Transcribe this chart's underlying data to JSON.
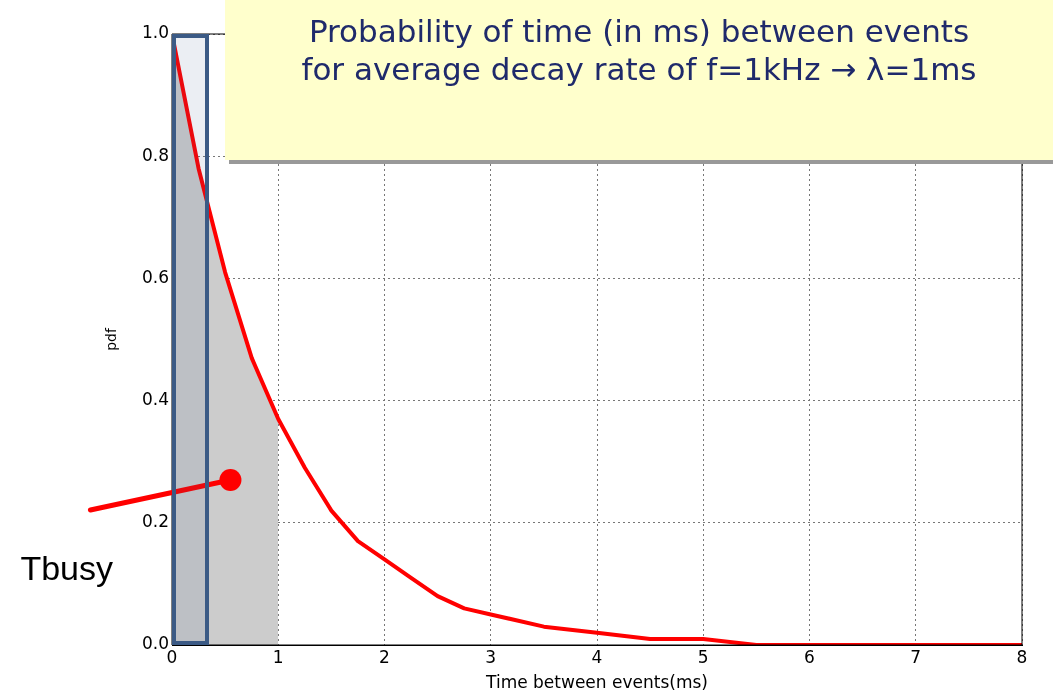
{
  "chart_data": {
    "type": "line",
    "title": "Probability of time (in ms) between events for average decay rate of f=1kHz → λ=1ms",
    "xlabel": "Time between events(ms)",
    "ylabel": "pdf",
    "series": [
      {
        "type": "area",
        "color": "#cccccc",
        "x": [
          0,
          0.25,
          0.5,
          0.75,
          1
        ],
        "values": [
          1,
          0.78,
          0.61,
          0.47,
          0.37
        ]
      },
      {
        "type": "line",
        "color": "#ff0000",
        "x": [
          0,
          0.25,
          0.5,
          0.75,
          1,
          1.25,
          1.5,
          1.75,
          2,
          2.25,
          2.5,
          2.75,
          3,
          3.5,
          4,
          4.5,
          5,
          5.5,
          6,
          7,
          8
        ],
        "values": [
          1,
          0.78,
          0.61,
          0.47,
          0.37,
          0.29,
          0.22,
          0.17,
          0.14,
          0.11,
          0.08,
          0.06,
          0.05,
          0.03,
          0.02,
          0.01,
          0.01,
          0,
          0,
          0,
          0
        ]
      }
    ],
    "xlim": [
      0,
      8
    ],
    "xticks": [
      0,
      1,
      2,
      3,
      4,
      5,
      6,
      7,
      8
    ],
    "ylim": [
      0,
      1
    ],
    "yticks": [
      {
        "value": 0,
        "label": "0.0"
      },
      0.2,
      0.4,
      0.6,
      0.8,
      {
        "value": 1,
        "label": "1.0"
      }
    ],
    "bands": [
      {
        "axis": "x",
        "from": 0,
        "to": 0.35,
        "color": "#3b5a85"
      }
    ],
    "annotations": [
      {
        "text": "Tbusy",
        "x": 0.55,
        "y": 0.27
      }
    ],
    "grid": true,
    "line_style": "solid",
    "marker": "none",
    "legend": false
  }
}
